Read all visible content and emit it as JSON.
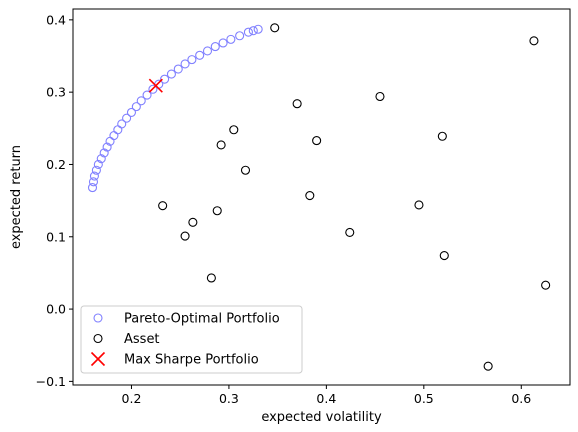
{
  "chart_data": {
    "type": "scatter",
    "xlabel": "expected volatility",
    "ylabel": "expected return",
    "xlim": [
      0.14,
      0.65
    ],
    "ylim": [
      -0.105,
      0.415
    ],
    "xticks": [
      0.2,
      0.3,
      0.4,
      0.5,
      0.6
    ],
    "yticks": [
      -0.1,
      0.0,
      0.1,
      0.2,
      0.3,
      0.4
    ],
    "xtick_labels": [
      "0.2",
      "0.3",
      "0.4",
      "0.5",
      "0.6"
    ],
    "ytick_labels": [
      "−0.1",
      "0.0",
      "0.1",
      "0.2",
      "0.3",
      "0.4"
    ],
    "grid": false,
    "legend_position": "bottom-left",
    "series": [
      {
        "name": "Pareto-Optimal Portfolio",
        "marker": "open-circle",
        "color": "#8080ff",
        "points": [
          [
            0.16,
            0.168
          ],
          [
            0.161,
            0.176
          ],
          [
            0.162,
            0.184
          ],
          [
            0.164,
            0.192
          ],
          [
            0.166,
            0.2
          ],
          [
            0.169,
            0.208
          ],
          [
            0.172,
            0.216
          ],
          [
            0.175,
            0.224
          ],
          [
            0.178,
            0.232
          ],
          [
            0.182,
            0.24
          ],
          [
            0.186,
            0.248
          ],
          [
            0.19,
            0.256
          ],
          [
            0.195,
            0.264
          ],
          [
            0.2,
            0.272
          ],
          [
            0.205,
            0.28
          ],
          [
            0.21,
            0.288
          ],
          [
            0.216,
            0.296
          ],
          [
            0.222,
            0.304
          ],
          [
            0.228,
            0.311
          ],
          [
            0.234,
            0.318
          ],
          [
            0.241,
            0.325
          ],
          [
            0.248,
            0.332
          ],
          [
            0.255,
            0.339
          ],
          [
            0.262,
            0.345
          ],
          [
            0.27,
            0.351
          ],
          [
            0.278,
            0.357
          ],
          [
            0.286,
            0.363
          ],
          [
            0.294,
            0.368
          ],
          [
            0.302,
            0.373
          ],
          [
            0.311,
            0.378
          ],
          [
            0.32,
            0.383
          ],
          [
            0.325,
            0.385
          ],
          [
            0.33,
            0.387
          ]
        ]
      },
      {
        "name": "Asset",
        "marker": "open-circle",
        "color": "#000000",
        "points": [
          [
            0.347,
            0.389
          ],
          [
            0.613,
            0.371
          ],
          [
            0.37,
            0.284
          ],
          [
            0.455,
            0.294
          ],
          [
            0.305,
            0.248
          ],
          [
            0.519,
            0.239
          ],
          [
            0.39,
            0.233
          ],
          [
            0.292,
            0.227
          ],
          [
            0.317,
            0.192
          ],
          [
            0.383,
            0.157
          ],
          [
            0.232,
            0.143
          ],
          [
            0.495,
            0.144
          ],
          [
            0.288,
            0.136
          ],
          [
            0.263,
            0.12
          ],
          [
            0.424,
            0.106
          ],
          [
            0.255,
            0.101
          ],
          [
            0.521,
            0.074
          ],
          [
            0.282,
            0.043
          ],
          [
            0.625,
            0.033
          ],
          [
            0.566,
            -0.079
          ]
        ]
      },
      {
        "name": "Max Sharpe Portfolio",
        "marker": "x",
        "color": "#ff0000",
        "points": [
          [
            0.225,
            0.309
          ]
        ]
      }
    ]
  }
}
